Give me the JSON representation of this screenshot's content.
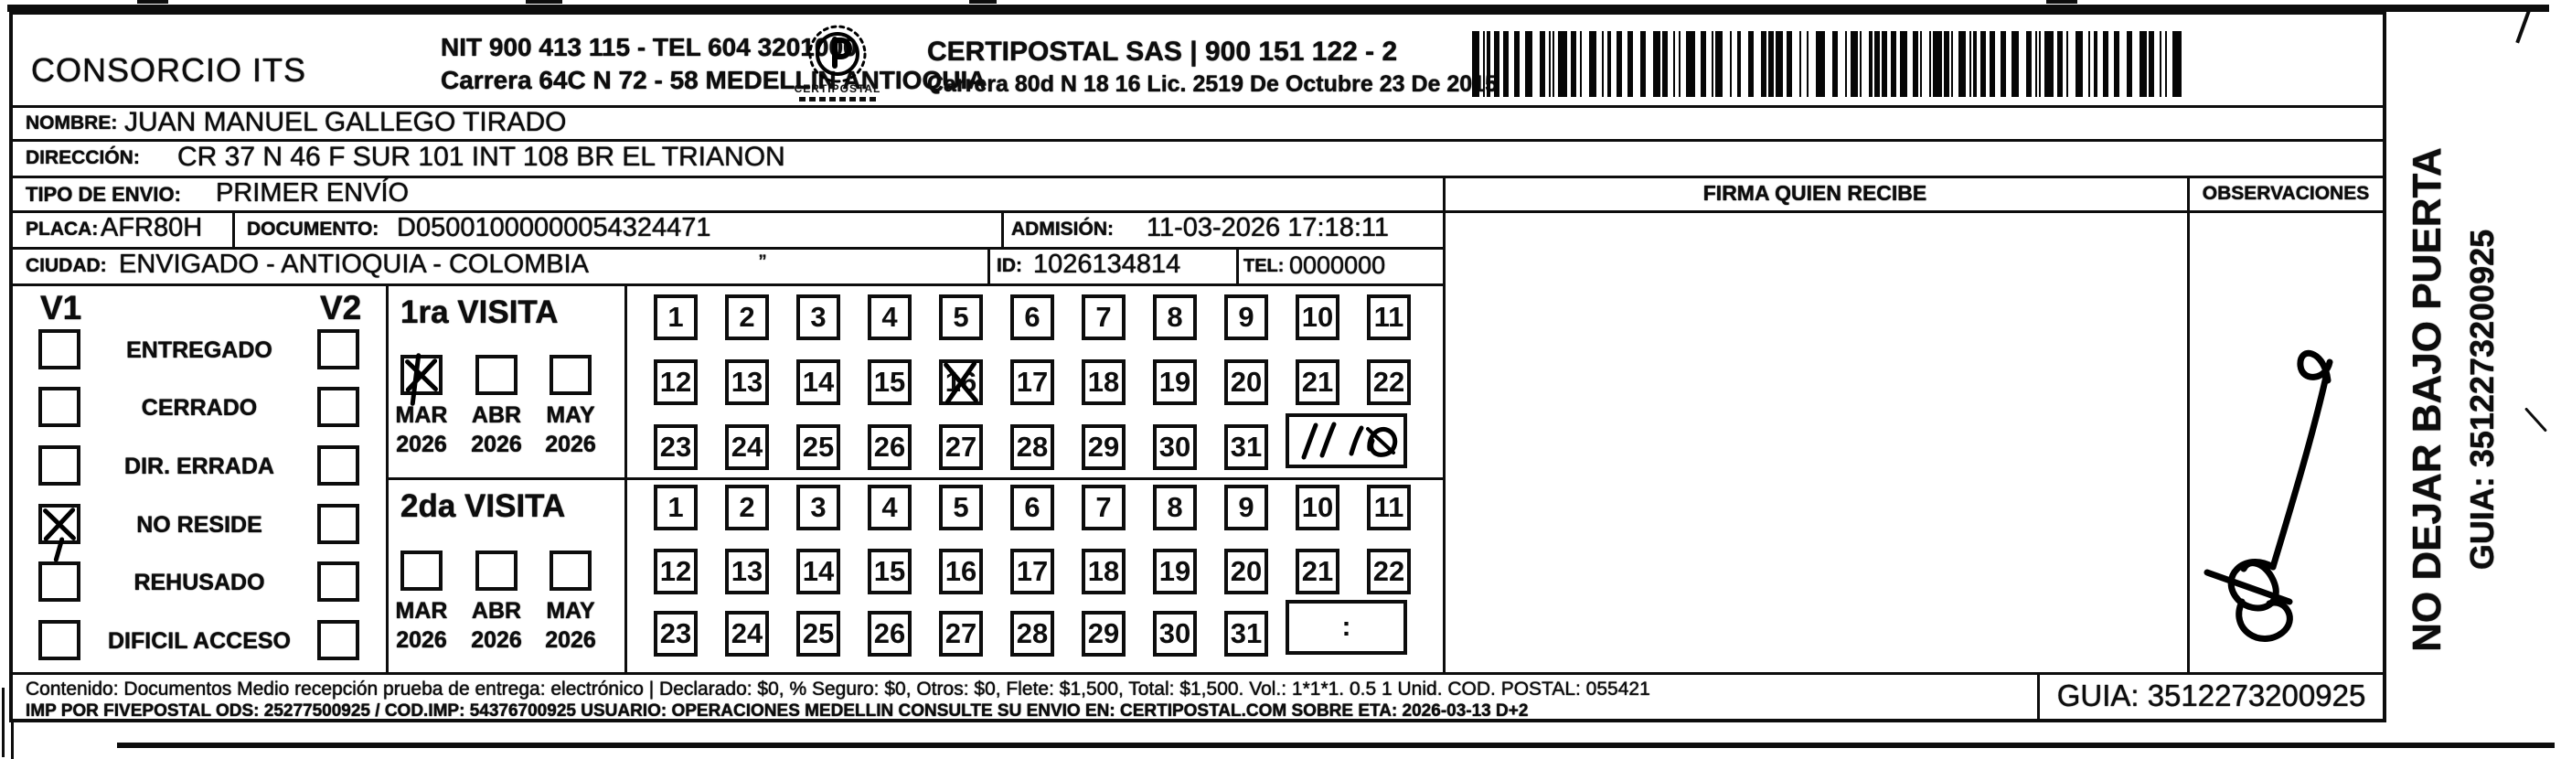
{
  "vendor": {
    "name": "CONSORCIO ITS",
    "nit_line": "NIT 900 413 115 - TEL 604 3201000",
    "address_line": "Carrera 64C N 72 - 58 MEDELLIN ANTIOQUIA"
  },
  "carrier": {
    "logo_caption": "CERTIPOSTAL",
    "name_line": "CERTIPOSTAL SAS | 900 151 122 - 2",
    "address_line": "Carrera 80d N 18 16  Lic. 2519 De Octubre 23 De 2015"
  },
  "recipient": {
    "nombre_label": "NOMBRE:",
    "nombre": "JUAN MANUEL GALLEGO TIRADO",
    "direccion_label": "DIRECCIÓN:",
    "direccion": "CR 37 N  46 F SUR   101 INT 108 BR EL TRIANON",
    "tipo_envio_label": "TIPO DE ENVIO:",
    "tipo_envio": "PRIMER ENVÍO",
    "placa_label": "PLACA:",
    "placa": "AFR80H",
    "documento_label": "DOCUMENTO:",
    "documento": "D05001000000054324471",
    "admision_label": "ADMISIÓN:",
    "admision": "11-03-2026 17:18:11",
    "ciudad_label": "CIUDAD:",
    "ciudad": "ENVIGADO - ANTIOQUIA - COLOMBIA",
    "id_label": "ID:",
    "id": "1026134814",
    "tel_label": "TEL:",
    "tel": "0000000"
  },
  "status_panel": {
    "col1": "V1",
    "col2": "V2",
    "rows": [
      {
        "label": "ENTREGADO",
        "v1": false,
        "v2": false
      },
      {
        "label": "CERRADO",
        "v1": false,
        "v2": false
      },
      {
        "label": "DIR. ERRADA",
        "v1": false,
        "v2": false
      },
      {
        "label": "NO RESIDE",
        "v1": true,
        "v2": false
      },
      {
        "label": "REHUSADO",
        "v1": false,
        "v2": false
      },
      {
        "label": "DIFICIL ACCESO",
        "v1": false,
        "v2": false
      }
    ]
  },
  "visits": {
    "first": {
      "title": "1ra VISITA",
      "months": [
        "MAR",
        "ABR",
        "MAY"
      ],
      "years": [
        "2026",
        "2026",
        "2026"
      ],
      "month_checked": [
        true,
        false,
        false
      ],
      "crossed_day": 16,
      "handwritten_time": "11:10"
    },
    "second": {
      "title": "2da VISITA",
      "months": [
        "MAR",
        "ABR",
        "MAY"
      ],
      "years": [
        "2026",
        "2026",
        "2026"
      ],
      "month_checked": [
        false,
        false,
        false
      ],
      "crossed_day": null,
      "time_box_text": ":"
    }
  },
  "calendar": {
    "days_row1": [
      1,
      2,
      3,
      4,
      5,
      6,
      7,
      8,
      9,
      10,
      11
    ],
    "days_row2": [
      12,
      13,
      14,
      15,
      16,
      17,
      18,
      19,
      20,
      21,
      22
    ],
    "days_row3": [
      23,
      24,
      25,
      26,
      27,
      28,
      29,
      30,
      31
    ]
  },
  "signature_area": {
    "firma_header": "FIRMA QUIEN RECIBE",
    "observaciones_header": "OBSERVACIONES"
  },
  "side_note": {
    "line1": "NO DEJAR BAJO PUERTA",
    "line2": "GUIA: 3512273200925"
  },
  "footer": {
    "line1": "Contenido: Documentos Medio recepción prueba de entrega: electrónico | Declarado: $0, % Seguro: $0, Otros: $0, Flete: $1,500, Total: $1,500. Vol.: 1*1*1. 0.5  1 Unid. COD. POSTAL: 055421",
    "line2": "IMP POR FIVEPOSTAL ODS: 25277500925 / COD.IMP: 54376700925 USUARIO: OPERACIONES MEDELLIN CONSULTE SU ENVIO EN: CERTIPOSTAL.COM SOBRE ETA: 2026-03-13 D+2",
    "guia": "GUIA: 3512273200925"
  },
  "barcode": {
    "value": "3512273200925"
  }
}
